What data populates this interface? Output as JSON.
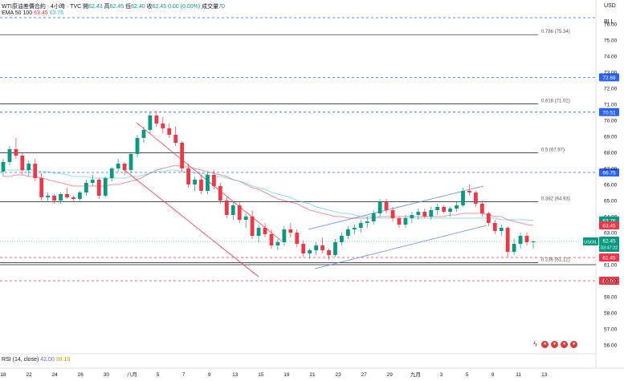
{
  "header": {
    "symbol": "WTI原油差價合約 · 4小時 · TVC",
    "open_label": "開",
    "open": "62.43",
    "high_label": "高",
    "high": "62.45",
    "low_label": "低",
    "low": "62.40",
    "close_label": "收",
    "close": "62.45",
    "change": "0.00 (0.00%)",
    "volume_label": "成交量",
    "volume": "70",
    "ema_label": "EMA 50 100",
    "ema50": "63.45",
    "ema100": "63.76"
  },
  "rsi": {
    "label": "RSI (14, close)",
    "v1": "42.00",
    "v2": "38.19"
  },
  "axis": {
    "currency": "USD",
    "unit": "BLL"
  },
  "chart_data": {
    "type": "candlestick",
    "y_ticks": [
      "76.00",
      "75.00",
      "74.00",
      "73.00",
      "72.00",
      "71.00",
      "70.00",
      "69.00",
      "68.00",
      "67.00",
      "66.00",
      "65.00",
      "64.00",
      "63.00",
      "62.00",
      "61.00",
      "60.00",
      "59.00",
      "58.00",
      "57.00",
      "56.00"
    ],
    "ylim": [
      55.6,
      76.7
    ],
    "xlim": [
      0,
      48
    ],
    "x_ticks": [
      {
        "x": 0,
        "label": "18"
      },
      {
        "x": 2,
        "label": "22"
      },
      {
        "x": 4,
        "label": "24"
      },
      {
        "x": 6,
        "label": "26"
      },
      {
        "x": 8,
        "label": "30"
      },
      {
        "x": 10,
        "label": "八月"
      },
      {
        "x": 12,
        "label": "5"
      },
      {
        "x": 14,
        "label": "7"
      },
      {
        "x": 16,
        "label": "9"
      },
      {
        "x": 18,
        "label": "13"
      },
      {
        "x": 20,
        "label": "15"
      },
      {
        "x": 22,
        "label": "19"
      },
      {
        "x": 24,
        "label": "21"
      },
      {
        "x": 26,
        "label": "23"
      },
      {
        "x": 28,
        "label": "27"
      },
      {
        "x": 30,
        "label": "29"
      },
      {
        "x": 32,
        "label": "九月"
      },
      {
        "x": 34,
        "label": "3"
      },
      {
        "x": 36,
        "label": "5"
      },
      {
        "x": 38,
        "label": "9"
      },
      {
        "x": 40,
        "label": "11"
      },
      {
        "x": 42,
        "label": "13"
      }
    ],
    "fib_levels": [
      {
        "label": "0.786 (75.34)",
        "value": 75.34
      },
      {
        "label": "0.618 (71.02)",
        "value": 71.02
      },
      {
        "label": "0.5 (67.97)",
        "value": 67.97
      },
      {
        "label": "0.382 (64.93)",
        "value": 64.93
      },
      {
        "label": "0.236 (61.12)",
        "value": 61.12
      }
    ],
    "horizontal_levels": [
      {
        "value": 76.4,
        "color": "#2962ff",
        "style": "dashed"
      },
      {
        "value": 72.68,
        "color": "#2962ff",
        "style": "dashed",
        "label": "72.68"
      },
      {
        "value": 70.51,
        "color": "#2962ff",
        "style": "dashed",
        "label": "70.51"
      },
      {
        "value": 66.75,
        "color": "#2962ff",
        "style": "dashed",
        "label": "66.75"
      },
      {
        "value": 61.45,
        "color": "#f23645",
        "style": "dashed",
        "label": "61.45"
      },
      {
        "value": 60.0,
        "color": "#f23645",
        "style": "dashed",
        "label": "60.00"
      },
      {
        "value": 61.0,
        "color": "#131722",
        "style": "solid"
      }
    ],
    "price_labels": [
      {
        "value": 63.76,
        "label": "63.76",
        "color": "#089981"
      },
      {
        "value": 63.45,
        "label": "63.45",
        "color": "#f23645"
      },
      {
        "value": 62.45,
        "label": "62.45",
        "color": "#089981",
        "symbol": "USOIL",
        "countdown": "03:47:22"
      }
    ],
    "ohlc": [
      [
        66.8,
        67.6,
        66.5,
        67.4
      ],
      [
        67.4,
        68.4,
        67.2,
        68.2
      ],
      [
        68.2,
        68.9,
        67.6,
        67.8
      ],
      [
        67.8,
        68.0,
        66.6,
        66.9
      ],
      [
        66.9,
        67.5,
        66.5,
        67.3
      ],
      [
        67.3,
        67.6,
        66.2,
        66.4
      ],
      [
        66.4,
        66.7,
        65.0,
        65.2
      ],
      [
        65.2,
        65.5,
        64.9,
        65.3
      ],
      [
        65.3,
        65.4,
        64.8,
        65.0
      ],
      [
        65.0,
        65.5,
        64.8,
        65.4
      ],
      [
        65.4,
        65.8,
        65.1,
        65.2
      ],
      [
        65.2,
        65.3,
        64.9,
        65.1
      ],
      [
        65.1,
        65.6,
        65.0,
        65.5
      ],
      [
        65.5,
        66.3,
        65.3,
        66.1
      ],
      [
        66.1,
        66.6,
        65.9,
        66.3
      ],
      [
        66.3,
        66.4,
        65.1,
        65.3
      ],
      [
        65.3,
        66.5,
        65.2,
        66.4
      ],
      [
        66.4,
        67.1,
        66.2,
        67.0
      ],
      [
        67.0,
        67.6,
        66.8,
        67.3
      ],
      [
        67.3,
        67.4,
        66.6,
        66.9
      ],
      [
        66.9,
        68.0,
        66.7,
        67.9
      ],
      [
        67.9,
        69.1,
        67.7,
        68.9
      ],
      [
        68.9,
        69.6,
        68.6,
        69.4
      ],
      [
        69.4,
        70.5,
        69.2,
        70.3
      ],
      [
        70.3,
        70.6,
        69.6,
        69.8
      ],
      [
        69.8,
        70.2,
        69.2,
        69.5
      ],
      [
        69.5,
        69.8,
        68.9,
        69.1
      ],
      [
        69.1,
        69.6,
        68.4,
        68.6
      ],
      [
        68.6,
        68.7,
        66.8,
        67.0
      ],
      [
        67.0,
        67.3,
        65.8,
        66.0
      ],
      [
        66.0,
        66.5,
        65.6,
        66.3
      ],
      [
        66.3,
        66.6,
        65.4,
        65.6
      ],
      [
        65.6,
        66.8,
        65.4,
        66.6
      ],
      [
        66.6,
        66.9,
        65.7,
        65.9
      ],
      [
        65.9,
        66.1,
        64.8,
        65.0
      ],
      [
        65.0,
        65.2,
        63.9,
        64.1
      ],
      [
        64.1,
        64.9,
        63.8,
        64.7
      ],
      [
        64.7,
        64.9,
        63.6,
        63.8
      ],
      [
        63.8,
        64.2,
        63.3,
        64.0
      ],
      [
        64.0,
        64.4,
        62.6,
        62.8
      ],
      [
        62.8,
        63.5,
        62.4,
        63.3
      ],
      [
        63.3,
        63.6,
        62.7,
        62.9
      ],
      [
        62.9,
        63.2,
        62.0,
        62.2
      ],
      [
        62.2,
        62.6,
        61.9,
        62.4
      ],
      [
        62.4,
        63.4,
        62.2,
        63.2
      ],
      [
        63.2,
        63.6,
        62.7,
        63.0
      ],
      [
        63.0,
        63.2,
        62.1,
        62.3
      ],
      [
        62.3,
        62.5,
        61.5,
        61.7
      ],
      [
        61.7,
        62.0,
        61.4,
        61.9
      ],
      [
        61.9,
        62.4,
        61.6,
        62.2
      ],
      [
        62.2,
        62.7,
        61.7,
        61.9
      ],
      [
        61.9,
        62.0,
        61.3,
        61.6
      ],
      [
        61.6,
        62.6,
        61.5,
        62.4
      ],
      [
        62.4,
        63.0,
        62.2,
        62.8
      ],
      [
        62.8,
        63.4,
        62.6,
        63.2
      ],
      [
        63.2,
        63.5,
        62.9,
        63.3
      ],
      [
        63.3,
        63.8,
        63.0,
        63.6
      ],
      [
        63.6,
        64.0,
        63.3,
        63.7
      ],
      [
        63.7,
        64.4,
        63.5,
        64.2
      ],
      [
        64.2,
        65.1,
        64.0,
        64.9
      ],
      [
        64.9,
        65.1,
        64.2,
        64.4
      ],
      [
        64.4,
        64.6,
        63.7,
        63.9
      ],
      [
        63.9,
        64.0,
        63.3,
        63.5
      ],
      [
        63.5,
        64.1,
        63.3,
        63.9
      ],
      [
        63.9,
        64.3,
        63.6,
        64.1
      ],
      [
        64.1,
        64.5,
        63.8,
        64.3
      ],
      [
        64.3,
        64.5,
        63.9,
        64.0
      ],
      [
        64.0,
        64.6,
        63.8,
        64.4
      ],
      [
        64.4,
        64.8,
        64.1,
        64.6
      ],
      [
        64.6,
        64.7,
        64.2,
        64.3
      ],
      [
        64.3,
        64.6,
        64.0,
        64.5
      ],
      [
        64.5,
        64.9,
        64.3,
        64.7
      ],
      [
        64.7,
        65.8,
        64.6,
        65.6
      ],
      [
        65.6,
        66.0,
        65.3,
        65.5
      ],
      [
        65.5,
        65.6,
        64.6,
        64.8
      ],
      [
        64.8,
        65.0,
        64.0,
        64.2
      ],
      [
        64.2,
        64.3,
        63.4,
        63.6
      ],
      [
        63.6,
        63.8,
        62.9,
        63.1
      ],
      [
        63.1,
        63.5,
        62.8,
        63.3
      ],
      [
        63.3,
        63.4,
        61.5,
        61.8
      ],
      [
        61.8,
        62.6,
        61.6,
        62.3
      ],
      [
        62.3,
        63.0,
        62.0,
        62.8
      ],
      [
        62.8,
        63.0,
        62.2,
        62.4
      ],
      [
        62.4,
        62.5,
        62.0,
        62.45
      ]
    ],
    "ema50": [
      66.5,
      66.5,
      66.6,
      66.6,
      66.5,
      66.5,
      66.4,
      66.3,
      66.2,
      66.1,
      66.0,
      65.9,
      65.9,
      65.9,
      65.9,
      65.9,
      65.9,
      66.0,
      66.0,
      66.1,
      66.2,
      66.3,
      66.5,
      66.7,
      66.9,
      67.0,
      67.1,
      67.2,
      67.1,
      67.1,
      67.0,
      66.9,
      66.8,
      66.7,
      66.6,
      66.5,
      66.3,
      66.2,
      66.0,
      65.8,
      65.7,
      65.5,
      65.3,
      65.1,
      65.0,
      64.9,
      64.8,
      64.6,
      64.4,
      64.3,
      64.2,
      64.1,
      64.0,
      64.0,
      63.9,
      63.9,
      63.9,
      63.9,
      63.9,
      64.0,
      64.0,
      64.0,
      64.0,
      64.0,
      64.0,
      64.0,
      64.0,
      64.0,
      64.0,
      64.0,
      64.1,
      64.1,
      64.2,
      64.2,
      64.2,
      64.2,
      64.1,
      64.0,
      64.0,
      63.8,
      63.7,
      63.6,
      63.5,
      63.45
    ],
    "ema100": [
      66.9,
      66.9,
      66.9,
      66.9,
      66.9,
      66.9,
      66.8,
      66.8,
      66.7,
      66.7,
      66.6,
      66.5,
      66.5,
      66.5,
      66.4,
      66.4,
      66.4,
      66.4,
      66.4,
      66.4,
      66.5,
      66.5,
      66.6,
      66.7,
      66.8,
      66.8,
      66.9,
      66.9,
      66.8,
      66.8,
      66.7,
      66.7,
      66.6,
      66.5,
      66.5,
      66.4,
      66.3,
      66.2,
      66.1,
      65.9,
      65.8,
      65.7,
      65.5,
      65.4,
      65.3,
      65.2,
      65.0,
      64.9,
      64.8,
      64.6,
      64.5,
      64.4,
      64.3,
      64.2,
      64.2,
      64.1,
      64.0,
      64.0,
      64.0,
      63.9,
      63.9,
      63.9,
      63.9,
      63.9,
      63.9,
      63.9,
      63.9,
      63.9,
      63.9,
      63.9,
      63.9,
      63.9,
      63.9,
      63.9,
      63.9,
      63.9,
      63.9,
      63.9,
      63.8,
      63.8,
      63.8,
      63.8,
      63.8,
      63.76
    ]
  }
}
